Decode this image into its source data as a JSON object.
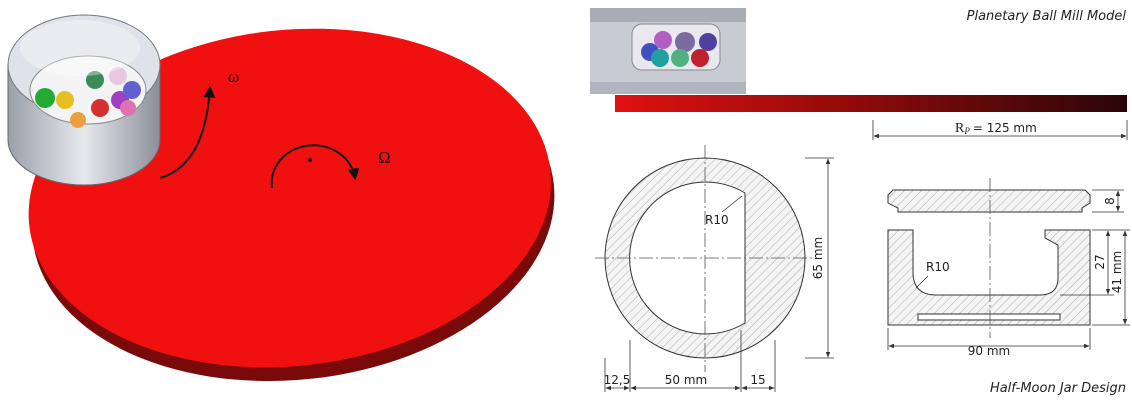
{
  "captions": {
    "top": "Planetary Ball Mill Model",
    "bottom": "Half-Moon Jar Design"
  },
  "model": {
    "jar_speed": "ω",
    "disc_speed": "Ω"
  },
  "radius": {
    "symbol": "R",
    "subscript": "P",
    "value": "= 125 mm"
  },
  "top_view": {
    "fillet": "R10",
    "diameter": "65 mm",
    "wall_left": "12,5",
    "inner": "50 mm",
    "wall_right": "15"
  },
  "section": {
    "fillet": "R10",
    "lid": "8",
    "depth": "27",
    "height": "41 mm",
    "width": "90 mm"
  }
}
